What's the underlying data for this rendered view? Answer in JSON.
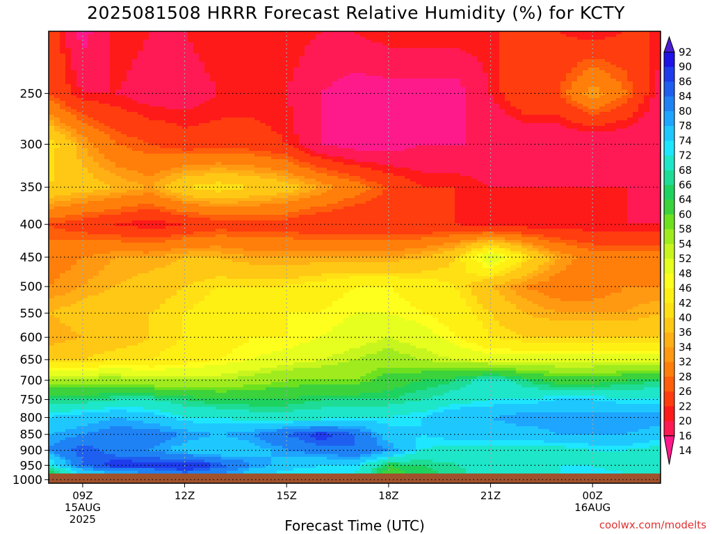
{
  "title": "2025081508 HRRR Forecast Relative Humidity (%) for KCTY",
  "xaxis_title": "Forecast Time (UTC)",
  "credit": "coolwx.com/modelts",
  "chart_data": {
    "type": "heatmap",
    "title": "2025081508 HRRR Forecast Relative Humidity (%) for KCTY",
    "xlabel": "Forecast Time (UTC)",
    "ylabel": "",
    "x_ticks": [
      {
        "hour": 9,
        "lines": [
          "09Z",
          "15AUG",
          "2025"
        ]
      },
      {
        "hour": 12,
        "lines": [
          "12Z"
        ]
      },
      {
        "hour": 15,
        "lines": [
          "15Z"
        ]
      },
      {
        "hour": 18,
        "lines": [
          "18Z"
        ]
      },
      {
        "hour": 21,
        "lines": [
          "21Z"
        ]
      },
      {
        "hour": 24,
        "lines": [
          "00Z",
          "16AUG"
        ]
      }
    ],
    "xlim": [
      8,
      26
    ],
    "y_ticks": [
      250,
      300,
      350,
      400,
      450,
      500,
      550,
      600,
      650,
      700,
      750,
      800,
      850,
      900,
      950,
      1000
    ],
    "ylim": [
      200,
      1013
    ],
    "y_scale": "log-pressure",
    "grid": true,
    "colorbar_levels": [
      14,
      16,
      20,
      22,
      26,
      28,
      32,
      34,
      36,
      40,
      42,
      46,
      48,
      52,
      54,
      58,
      60,
      64,
      66,
      68,
      72,
      74,
      78,
      80,
      84,
      86,
      90,
      92
    ],
    "colorbar_colors": [
      "#ff1a8c",
      "#ff1a55",
      "#ff1a1a",
      "#ff3d0f",
      "#ff5e0a",
      "#ff7f0a",
      "#ff9912",
      "#ffb014",
      "#ffc814",
      "#ffe014",
      "#fff014",
      "#ffff1e",
      "#e6ff1e",
      "#c8f51e",
      "#a0eb1e",
      "#6ee11e",
      "#3cd23c",
      "#1ed25f",
      "#1edc96",
      "#1ee6c8",
      "#1ee6ff",
      "#1ec8ff",
      "#1ea5ff",
      "#1e82f5",
      "#1e5ff0",
      "#1e3ceb",
      "#1e14e6",
      "#4b1ed2"
    ],
    "colorbar_label_side": "right",
    "time_hours": [
      8,
      9,
      10,
      11,
      12,
      13,
      14,
      15,
      16,
      17,
      18,
      19,
      20,
      21,
      22,
      23,
      24,
      25,
      26
    ],
    "levels_hpa": [
      200,
      250,
      300,
      350,
      400,
      450,
      500,
      550,
      600,
      650,
      700,
      750,
      800,
      850,
      900,
      950,
      1000
    ],
    "rh_percent": [
      [
        26,
        14,
        22,
        20,
        20,
        22,
        22,
        22,
        20,
        20,
        22,
        22,
        22,
        22,
        22,
        22,
        20,
        22,
        22
      ],
      [
        26,
        20,
        20,
        18,
        18,
        20,
        20,
        20,
        16,
        14,
        14,
        14,
        14,
        20,
        26,
        26,
        34,
        28,
        18
      ],
      [
        42,
        34,
        28,
        26,
        24,
        24,
        24,
        22,
        16,
        14,
        14,
        16,
        16,
        16,
        16,
        16,
        16,
        16,
        16
      ],
      [
        40,
        38,
        36,
        34,
        40,
        42,
        40,
        38,
        34,
        30,
        26,
        22,
        22,
        20,
        20,
        20,
        20,
        20,
        18
      ],
      [
        26,
        24,
        22,
        20,
        22,
        24,
        24,
        24,
        22,
        22,
        22,
        22,
        22,
        20,
        20,
        20,
        20,
        20,
        20
      ],
      [
        30,
        32,
        34,
        34,
        36,
        36,
        34,
        34,
        34,
        34,
        34,
        36,
        40,
        52,
        42,
        34,
        30,
        30,
        30
      ],
      [
        32,
        34,
        36,
        38,
        40,
        42,
        42,
        42,
        44,
        46,
        46,
        44,
        42,
        36,
        32,
        30,
        30,
        32,
        32
      ],
      [
        36,
        38,
        40,
        40,
        42,
        44,
        44,
        46,
        46,
        48,
        48,
        46,
        44,
        40,
        36,
        34,
        34,
        34,
        36
      ],
      [
        34,
        36,
        38,
        40,
        42,
        44,
        46,
        46,
        48,
        50,
        52,
        50,
        46,
        42,
        40,
        40,
        40,
        40,
        40
      ],
      [
        40,
        40,
        42,
        42,
        44,
        46,
        48,
        50,
        52,
        54,
        56,
        54,
        52,
        50,
        50,
        50,
        50,
        50,
        50
      ],
      [
        56,
        56,
        56,
        54,
        54,
        54,
        56,
        58,
        58,
        58,
        62,
        64,
        66,
        70,
        66,
        62,
        62,
        64,
        66
      ],
      [
        66,
        66,
        68,
        68,
        66,
        64,
        64,
        64,
        66,
        66,
        66,
        68,
        70,
        72,
        72,
        74,
        74,
        72,
        72
      ],
      [
        74,
        76,
        78,
        76,
        72,
        72,
        70,
        70,
        70,
        72,
        72,
        74,
        78,
        78,
        80,
        80,
        80,
        80,
        80
      ],
      [
        78,
        80,
        82,
        82,
        80,
        78,
        80,
        84,
        88,
        84,
        76,
        74,
        76,
        76,
        76,
        78,
        78,
        78,
        76
      ],
      [
        80,
        86,
        82,
        80,
        76,
        74,
        76,
        80,
        82,
        84,
        80,
        72,
        70,
        70,
        70,
        70,
        72,
        72,
        70
      ],
      [
        70,
        84,
        88,
        88,
        90,
        86,
        80,
        76,
        74,
        74,
        64,
        66,
        68,
        70,
        70,
        72,
        72,
        70,
        70
      ],
      [
        56,
        66,
        70,
        72,
        78,
        76,
        72,
        70,
        70,
        70,
        62,
        64,
        66,
        70,
        72,
        72,
        74,
        74,
        72
      ]
    ]
  }
}
